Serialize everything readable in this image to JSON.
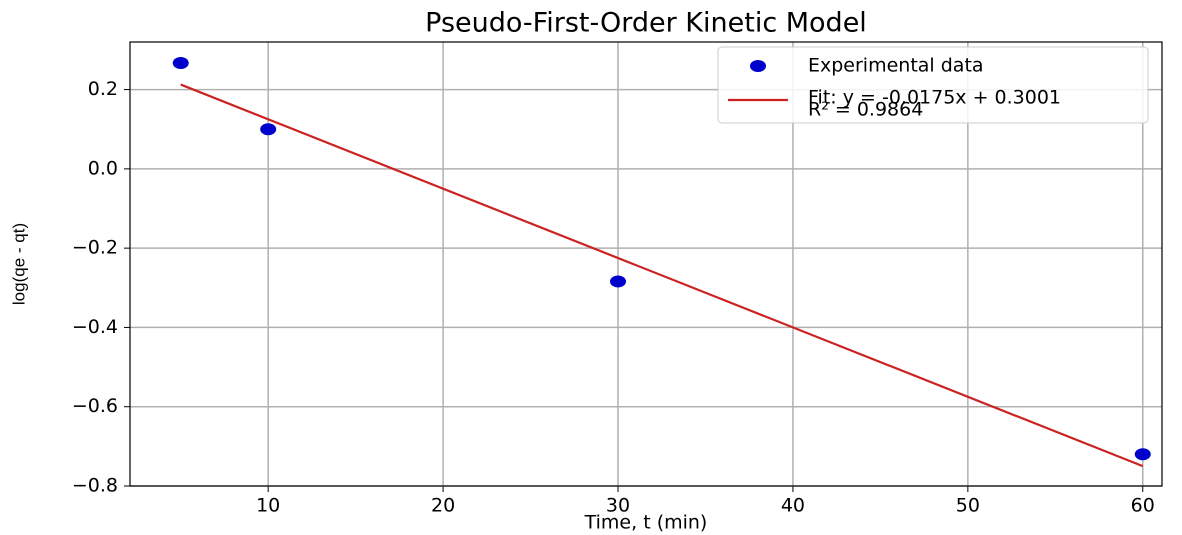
{
  "chart_data": {
    "type": "scatter",
    "title": "Pseudo-First-Order Kinetic Model",
    "x_label": "Time, t (min)",
    "y_label": "log(qe - qt)",
    "series": [
      {
        "name": "Experimental data",
        "type": "scatter",
        "color": "#0000cc",
        "x": [
          5,
          10,
          30,
          60
        ],
        "values": [
          0.267,
          0.1,
          -0.284,
          -0.72
        ]
      },
      {
        "name": "Fit: y = -0.0175x + 0.3001",
        "type": "line",
        "color": "#cc2222",
        "x": [
          5,
          60
        ],
        "values": [
          0.2126,
          -0.7499
        ]
      }
    ],
    "legend_note": "R² = 0.9864",
    "legend": "upper right",
    "grid": true,
    "xlim": [
      2.1,
      61.1
    ],
    "ylim": [
      -0.8,
      0.32
    ],
    "xticks": [
      10,
      20,
      30,
      40,
      50,
      60
    ],
    "yticks": [
      {
        "value": -0.8,
        "label": "−0.8"
      },
      {
        "value": -0.6,
        "label": "−0.6"
      },
      {
        "value": -0.4,
        "label": "−0.4"
      },
      {
        "value": -0.2,
        "label": "−0.2"
      },
      {
        "value": 0,
        "label": "0.0"
      },
      0.2
    ]
  }
}
